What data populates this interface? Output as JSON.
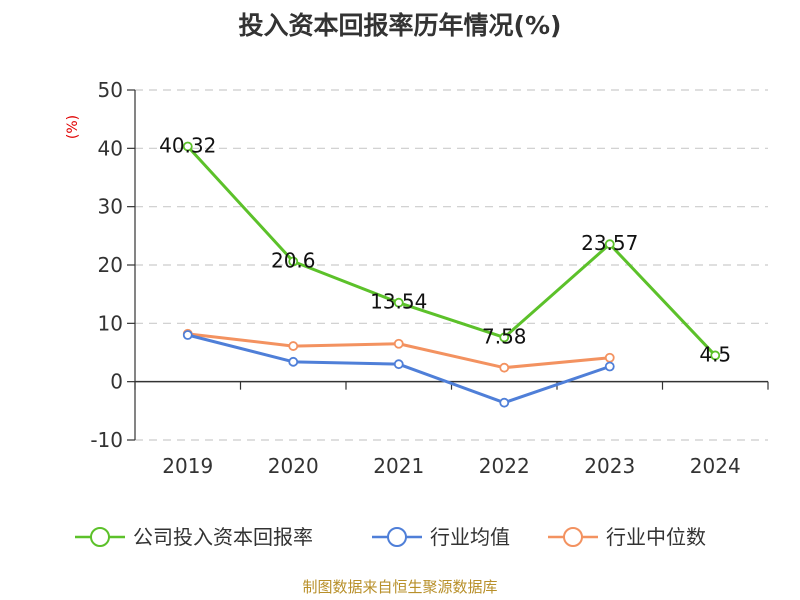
{
  "chart_data": {
    "type": "line",
    "title": "投入资本回报率历年情况(%)",
    "ylabel": "(%)",
    "categories": [
      "2019",
      "2020",
      "2021",
      "2022",
      "2023",
      "2024"
    ],
    "ylim": [
      -10,
      50
    ],
    "yticks": [
      50,
      40,
      30,
      20,
      10,
      0,
      -10
    ],
    "grid": true,
    "legend_position": "bottom",
    "series": [
      {
        "name": "公司投入资本回报率",
        "color": "#5cc12a",
        "values": [
          40.32,
          20.6,
          13.54,
          7.58,
          23.57,
          4.5
        ],
        "labels": [
          "40.32",
          "20.6",
          "13.54",
          "7.58",
          "23.57",
          "4.5"
        ]
      },
      {
        "name": "行业均值",
        "color": "#4f7fd8",
        "values": [
          8.0,
          3.4,
          3.0,
          -3.6,
          2.6,
          null
        ]
      },
      {
        "name": "行业中位数",
        "color": "#f39260",
        "values": [
          8.2,
          6.1,
          6.5,
          2.4,
          4.1,
          null
        ]
      }
    ]
  },
  "source": "制图数据来自恒生聚源数据库"
}
